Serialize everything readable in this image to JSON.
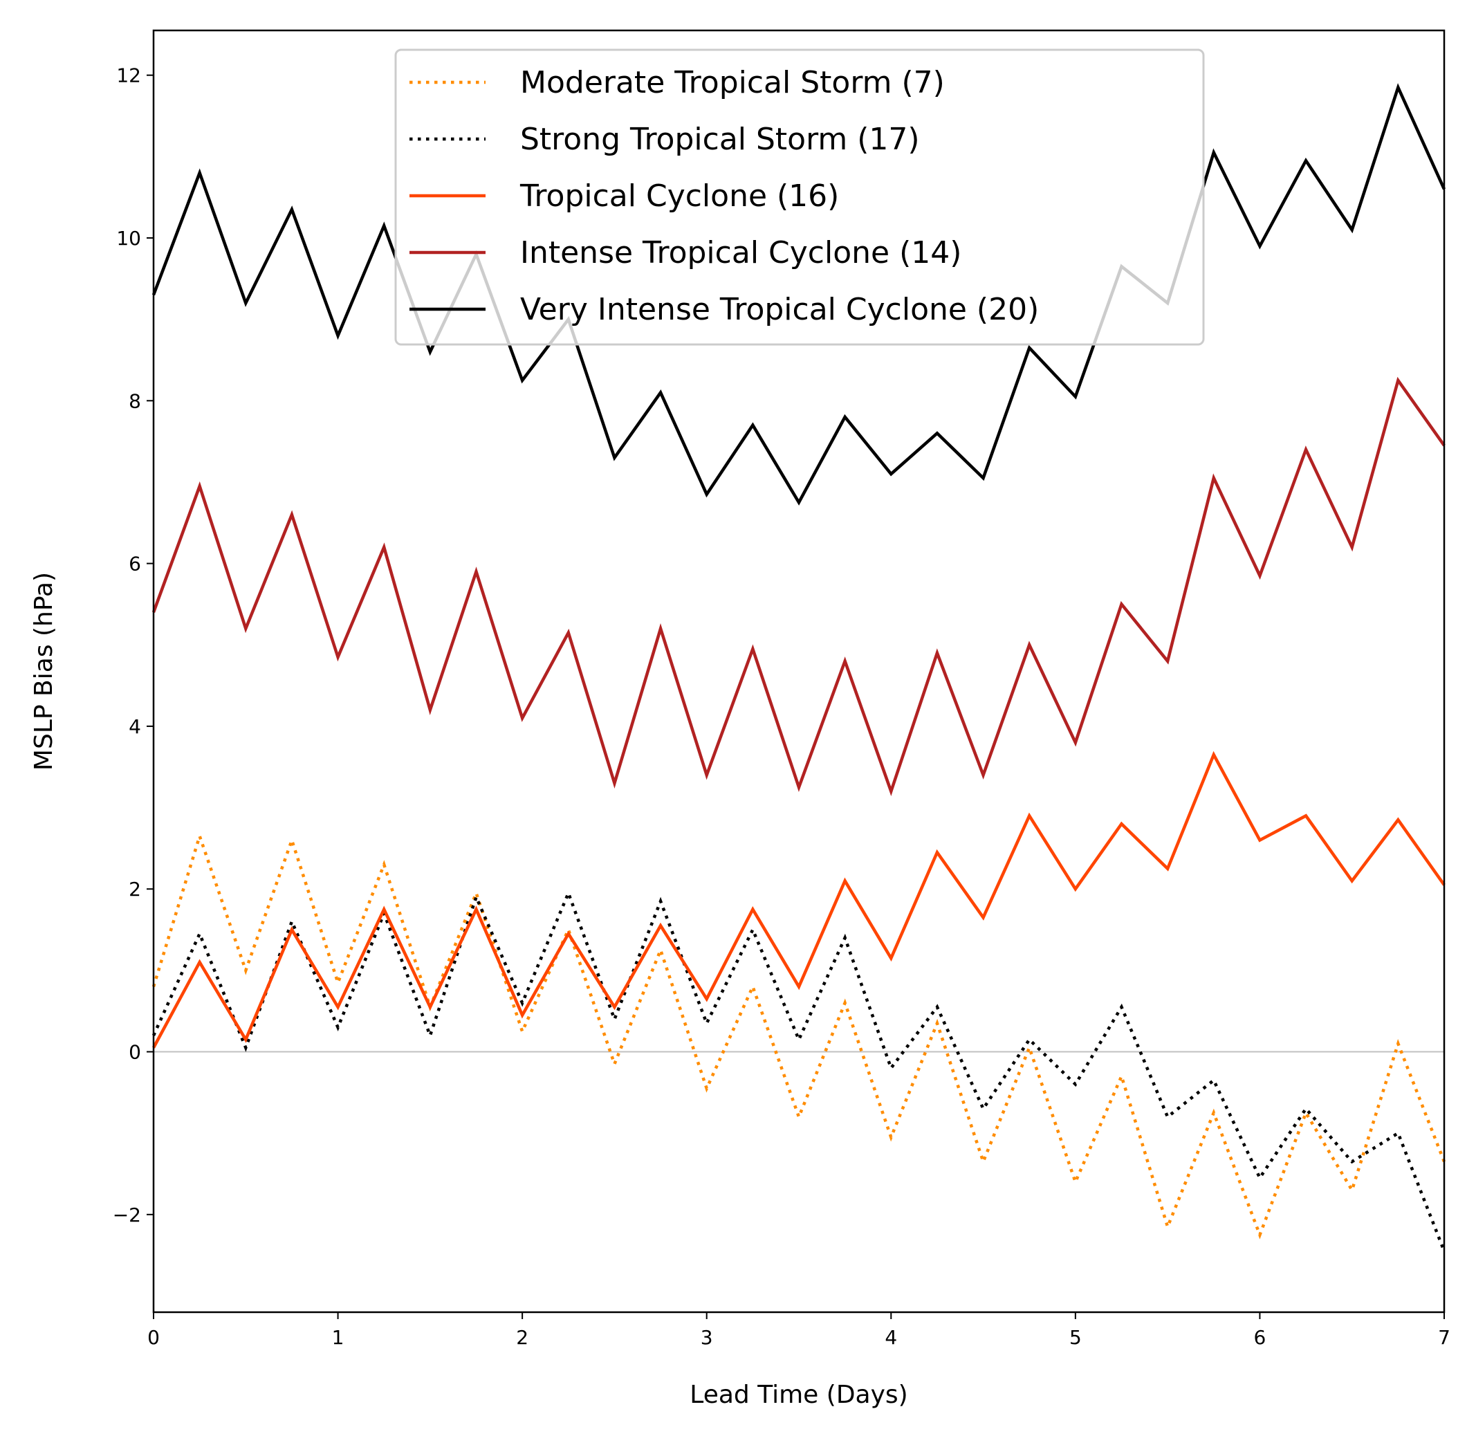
{
  "chart_data": {
    "type": "line",
    "xlabel": "Lead Time (Days)",
    "ylabel": "MSLP Bias (hPa)",
    "xlim": [
      0,
      7
    ],
    "ylim": [
      -3.2,
      12.55
    ],
    "xticks": [
      0,
      1,
      2,
      3,
      4,
      5,
      6,
      7
    ],
    "yticks": [
      -2,
      0,
      2,
      4,
      6,
      8,
      10,
      12
    ],
    "ytick_labels": [
      "−2",
      "0",
      "2",
      "4",
      "6",
      "8",
      "10",
      "12"
    ],
    "zero_line": true,
    "grid": false,
    "legend_placement": "top-center",
    "x": [
      0,
      0.25,
      0.5,
      0.75,
      1,
      1.25,
      1.5,
      1.75,
      2,
      2.25,
      2.5,
      2.75,
      3,
      3.25,
      3.5,
      3.75,
      4,
      4.25,
      4.5,
      4.75,
      5,
      5.25,
      5.5,
      5.75,
      6,
      6.25,
      6.5,
      6.75,
      7
    ],
    "series": [
      {
        "name": "Moderate Tropical Storm (7)",
        "color": "#ff8c00",
        "style": "dotted",
        "values": [
          0.8,
          2.65,
          1.0,
          2.6,
          0.85,
          2.3,
          0.55,
          1.95,
          0.25,
          1.5,
          -0.15,
          1.25,
          -0.45,
          0.8,
          -0.8,
          0.6,
          -1.05,
          0.35,
          -1.35,
          0.05,
          -1.6,
          -0.3,
          -2.15,
          -0.75,
          -2.25,
          -0.75,
          -1.7,
          0.1,
          -1.35
        ]
      },
      {
        "name": "Strong Tropical Storm (17)",
        "color": "#000000",
        "style": "dotted",
        "values": [
          0.2,
          1.45,
          0.05,
          1.6,
          0.3,
          1.7,
          0.2,
          1.9,
          0.6,
          1.95,
          0.4,
          1.85,
          0.35,
          1.5,
          0.15,
          1.4,
          -0.2,
          0.55,
          -0.7,
          0.15,
          -0.4,
          0.55,
          -0.8,
          -0.35,
          -1.55,
          -0.7,
          -1.35,
          -1.0,
          -2.45
        ]
      },
      {
        "name": "Tropical Cyclone (16)",
        "color": "#ff4500",
        "style": "solid",
        "values": [
          0.05,
          1.1,
          0.15,
          1.5,
          0.55,
          1.75,
          0.55,
          1.75,
          0.45,
          1.45,
          0.55,
          1.55,
          0.65,
          1.75,
          0.8,
          2.1,
          1.15,
          2.45,
          1.65,
          2.9,
          2.0,
          2.8,
          2.25,
          3.65,
          2.6,
          2.9,
          2.1,
          2.85,
          2.05
        ]
      },
      {
        "name": "Intense Tropical Cyclone (14)",
        "color": "#b22222",
        "style": "solid",
        "values": [
          5.4,
          6.95,
          5.2,
          6.6,
          4.85,
          6.2,
          4.2,
          5.9,
          4.1,
          5.15,
          3.3,
          5.2,
          3.4,
          4.95,
          3.25,
          4.8,
          3.2,
          4.9,
          3.4,
          5.0,
          3.8,
          5.5,
          4.8,
          7.05,
          5.85,
          7.4,
          6.2,
          8.25,
          7.45
        ]
      },
      {
        "name": "Very Intense Tropical Cyclone (20)",
        "color": "#000000",
        "style": "solid",
        "values": [
          9.3,
          10.8,
          9.2,
          10.35,
          8.8,
          10.15,
          8.6,
          9.8,
          8.25,
          9.0,
          7.3,
          8.1,
          6.85,
          7.7,
          6.75,
          7.8,
          7.1,
          7.6,
          7.05,
          8.65,
          8.05,
          9.65,
          9.2,
          11.05,
          9.9,
          10.95,
          10.1,
          11.85,
          10.6
        ]
      }
    ]
  }
}
